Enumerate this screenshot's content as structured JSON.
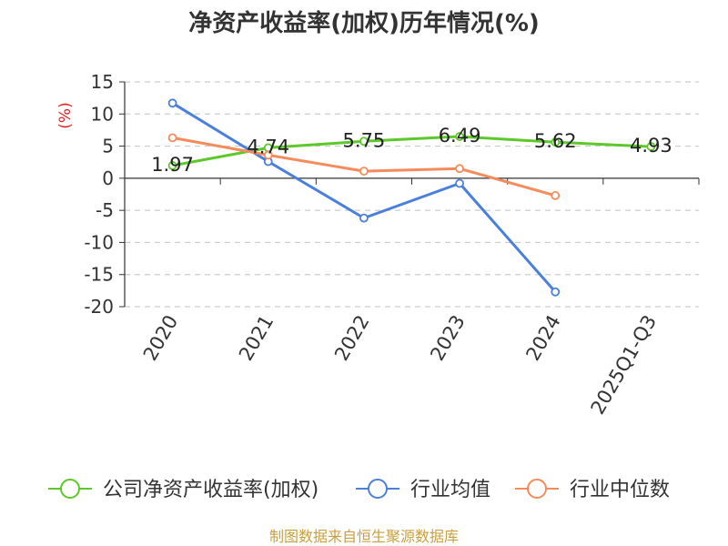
{
  "chart_data": {
    "type": "line",
    "title": "净资产收益率(加权)历年情况(%)",
    "ylabel": "(%)",
    "categories": [
      "2020",
      "2021",
      "2022",
      "2023",
      "2024",
      "2025Q1-Q3"
    ],
    "ylim": [
      -20,
      15
    ],
    "yticks": [
      "15",
      "10",
      "5",
      "0",
      "-5",
      "-10",
      "-15",
      "-20"
    ],
    "ytick_values": [
      15,
      10,
      5,
      0,
      -5,
      -10,
      -15,
      -20
    ],
    "grid": true,
    "legend_position": "bottom",
    "series": [
      {
        "name": "公司净资产收益率(加权)",
        "color": "#5cc82a",
        "values": [
          1.97,
          4.74,
          5.75,
          6.49,
          5.62,
          4.93
        ],
        "labels": [
          "1.97",
          "4.74",
          "5.75",
          "6.49",
          "5.62",
          "4.93"
        ]
      },
      {
        "name": "行业均值",
        "color": "#4a7fdc",
        "values": [
          11.7,
          2.6,
          -6.2,
          -0.8,
          -17.7,
          null
        ]
      },
      {
        "name": "行业中位数",
        "color": "#f58b5a",
        "values": [
          6.3,
          3.6,
          1.1,
          1.5,
          -2.7,
          null
        ]
      }
    ]
  },
  "source": "制图数据来自恒生聚源数据库"
}
